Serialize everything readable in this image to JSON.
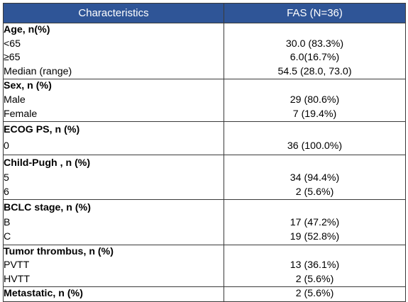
{
  "table": {
    "headers": [
      "Characteristics",
      "FAS (N=36)"
    ],
    "sections": [
      {
        "title": "Age, n(%)",
        "rows": [
          {
            "label": "<65",
            "value": "30.0 (83.3%)"
          },
          {
            "label": "≥65",
            "value": "6.0(16.7%)"
          },
          {
            "label": "Median (range)",
            "value": "54.5 (28.0, 73.0)"
          }
        ]
      },
      {
        "title": "Sex, n (%)",
        "rows": [
          {
            "label": "Male",
            "value": "29 (80.6%)"
          },
          {
            "label": "Female",
            "value": "7 (19.4%)"
          }
        ]
      },
      {
        "title": "ECOG PS, n (%)",
        "rows": [
          {
            "label": "0",
            "value": "36 (100.0%)"
          }
        ]
      },
      {
        "title": "Child-Pugh , n (%)",
        "rows": [
          {
            "label": "5",
            "value": "34 (94.4%)"
          },
          {
            "label": "6",
            "value": "2 (5.6%)"
          }
        ]
      },
      {
        "title": "BCLC stage, n (%)",
        "rows": [
          {
            "label": "B",
            "value": "17 (47.2%)"
          },
          {
            "label": "C",
            "value": "19 (52.8%)"
          }
        ]
      },
      {
        "title": "Tumor thrombus, n (%)",
        "rows": [
          {
            "label": "PVTT",
            "value": "13 (36.1%)"
          },
          {
            "label": "HVTT",
            "value": "2 (5.6%)"
          }
        ]
      },
      {
        "title": "Metastatic, n (%)",
        "inline_value": "2 (5.6%)",
        "rows": []
      }
    ]
  }
}
